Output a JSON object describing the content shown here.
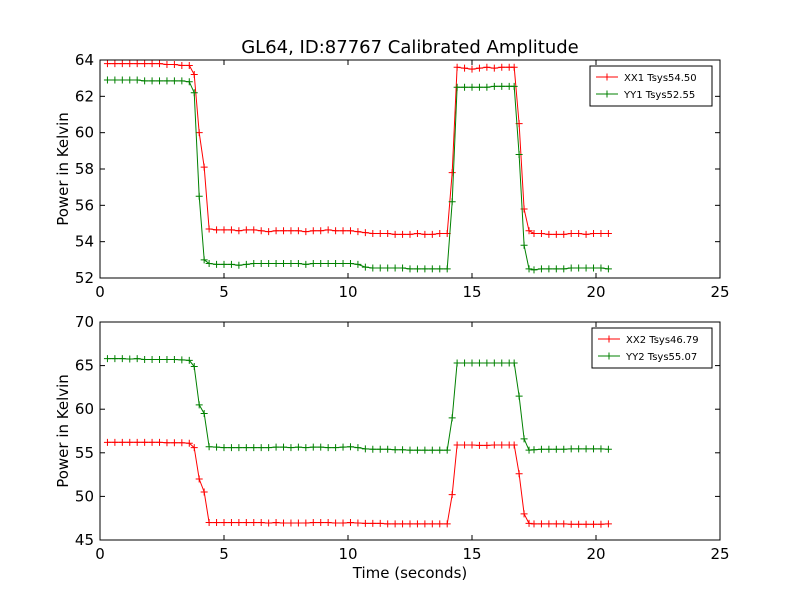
{
  "chart_data": [
    {
      "type": "line",
      "title": "GL64, ID:87767 Calibrated Amplitude",
      "xlabel": "",
      "ylabel": "Power in Kelvin",
      "xlim": [
        0,
        25
      ],
      "ylim": [
        52,
        64
      ],
      "xticks": [
        0,
        5,
        10,
        15,
        20,
        25
      ],
      "yticks": [
        52,
        54,
        56,
        58,
        60,
        62,
        64
      ],
      "legend_position": "top-right",
      "series": [
        {
          "name": "XX1 Tsys54.50",
          "color": "#ff0000",
          "marker": "plus",
          "x": [
            0.3,
            0.6,
            0.9,
            1.2,
            1.5,
            1.8,
            2.1,
            2.4,
            2.7,
            3.0,
            3.3,
            3.6,
            3.8,
            4.0,
            4.2,
            4.4,
            4.7,
            5.0,
            5.3,
            5.6,
            5.9,
            6.2,
            6.5,
            6.8,
            7.1,
            7.4,
            7.7,
            8.0,
            8.3,
            8.6,
            8.9,
            9.2,
            9.5,
            9.8,
            10.1,
            10.4,
            10.7,
            11.0,
            11.3,
            11.6,
            11.9,
            12.2,
            12.5,
            12.8,
            13.1,
            13.4,
            13.7,
            14.0,
            14.2,
            14.4,
            14.7,
            15.0,
            15.3,
            15.6,
            15.9,
            16.2,
            16.5,
            16.7,
            16.9,
            17.1,
            17.3,
            17.5,
            17.8,
            18.1,
            18.4,
            18.7,
            19.0,
            19.3,
            19.6,
            19.9,
            20.2,
            20.5
          ],
          "y": [
            63.8,
            63.8,
            63.8,
            63.8,
            63.8,
            63.8,
            63.8,
            63.8,
            63.75,
            63.75,
            63.7,
            63.7,
            63.2,
            60.0,
            58.1,
            54.7,
            54.65,
            54.65,
            54.65,
            54.6,
            54.65,
            54.65,
            54.6,
            54.55,
            54.6,
            54.6,
            54.6,
            54.6,
            54.55,
            54.6,
            54.6,
            54.65,
            54.6,
            54.6,
            54.6,
            54.55,
            54.5,
            54.45,
            54.45,
            54.45,
            54.4,
            54.4,
            54.4,
            54.45,
            54.4,
            54.4,
            54.45,
            54.45,
            57.8,
            63.6,
            63.55,
            63.5,
            63.55,
            63.6,
            63.55,
            63.6,
            63.6,
            63.6,
            60.5,
            55.8,
            54.6,
            54.45,
            54.45,
            54.4,
            54.4,
            54.4,
            54.45,
            54.45,
            54.4,
            54.45,
            54.45,
            54.45
          ]
        },
        {
          "name": "YY1 Tsys52.55",
          "color": "#008000",
          "marker": "plus",
          "x": [
            0.3,
            0.6,
            0.9,
            1.2,
            1.5,
            1.8,
            2.1,
            2.4,
            2.7,
            3.0,
            3.3,
            3.6,
            3.8,
            4.0,
            4.2,
            4.4,
            4.7,
            5.0,
            5.3,
            5.6,
            5.9,
            6.2,
            6.5,
            6.8,
            7.1,
            7.4,
            7.7,
            8.0,
            8.3,
            8.6,
            8.9,
            9.2,
            9.5,
            9.8,
            10.1,
            10.4,
            10.7,
            11.0,
            11.3,
            11.6,
            11.9,
            12.2,
            12.5,
            12.8,
            13.1,
            13.4,
            13.7,
            14.0,
            14.2,
            14.4,
            14.7,
            15.0,
            15.3,
            15.6,
            15.9,
            16.2,
            16.5,
            16.7,
            16.9,
            17.1,
            17.3,
            17.5,
            17.8,
            18.1,
            18.4,
            18.7,
            19.0,
            19.3,
            19.6,
            19.9,
            20.2,
            20.5
          ],
          "y": [
            62.9,
            62.9,
            62.9,
            62.9,
            62.9,
            62.85,
            62.85,
            62.85,
            62.85,
            62.85,
            62.85,
            62.8,
            62.2,
            56.5,
            53.0,
            52.8,
            52.75,
            52.75,
            52.75,
            52.7,
            52.75,
            52.8,
            52.8,
            52.8,
            52.8,
            52.8,
            52.8,
            52.8,
            52.75,
            52.8,
            52.8,
            52.8,
            52.8,
            52.8,
            52.8,
            52.75,
            52.6,
            52.55,
            52.55,
            52.55,
            52.55,
            52.55,
            52.5,
            52.5,
            52.5,
            52.5,
            52.5,
            52.5,
            56.2,
            62.5,
            62.5,
            62.5,
            62.5,
            62.5,
            62.55,
            62.55,
            62.55,
            62.55,
            58.8,
            53.8,
            52.5,
            52.45,
            52.5,
            52.5,
            52.5,
            52.5,
            52.55,
            52.55,
            52.55,
            52.55,
            52.55,
            52.5
          ]
        }
      ]
    },
    {
      "type": "line",
      "title": "",
      "xlabel": "Time (seconds)",
      "ylabel": "Power in Kelvin",
      "xlim": [
        0,
        25
      ],
      "ylim": [
        45,
        70
      ],
      "xticks": [
        0,
        5,
        10,
        15,
        20,
        25
      ],
      "yticks": [
        45,
        50,
        55,
        60,
        65,
        70
      ],
      "legend_position": "top-right",
      "series": [
        {
          "name": "XX2 Tsys46.79",
          "color": "#ff0000",
          "marker": "plus",
          "x": [
            0.3,
            0.6,
            0.9,
            1.2,
            1.5,
            1.8,
            2.1,
            2.4,
            2.7,
            3.0,
            3.3,
            3.6,
            3.8,
            4.0,
            4.2,
            4.4,
            4.7,
            5.0,
            5.3,
            5.6,
            5.9,
            6.2,
            6.5,
            6.8,
            7.1,
            7.4,
            7.7,
            8.0,
            8.3,
            8.6,
            8.9,
            9.2,
            9.5,
            9.8,
            10.1,
            10.4,
            10.7,
            11.0,
            11.3,
            11.6,
            11.9,
            12.2,
            12.5,
            12.8,
            13.1,
            13.4,
            13.7,
            14.0,
            14.2,
            14.4,
            14.7,
            15.0,
            15.3,
            15.6,
            15.9,
            16.2,
            16.5,
            16.7,
            16.9,
            17.1,
            17.3,
            17.5,
            17.8,
            18.1,
            18.4,
            18.7,
            19.0,
            19.3,
            19.6,
            19.9,
            20.2,
            20.5
          ],
          "y": [
            56.2,
            56.2,
            56.2,
            56.2,
            56.2,
            56.2,
            56.2,
            56.2,
            56.15,
            56.15,
            56.15,
            56.1,
            55.6,
            52.0,
            50.5,
            47.0,
            47.0,
            47.0,
            47.0,
            47.0,
            47.0,
            47.0,
            47.0,
            46.95,
            47.0,
            46.95,
            46.95,
            46.95,
            46.95,
            47.0,
            47.0,
            47.0,
            46.95,
            46.95,
            47.0,
            46.95,
            46.9,
            46.9,
            46.9,
            46.85,
            46.85,
            46.85,
            46.85,
            46.85,
            46.85,
            46.85,
            46.85,
            46.85,
            50.2,
            55.9,
            55.9,
            55.9,
            55.85,
            55.85,
            55.9,
            55.9,
            55.9,
            55.9,
            52.6,
            48.0,
            46.9,
            46.85,
            46.85,
            46.85,
            46.85,
            46.85,
            46.8,
            46.8,
            46.8,
            46.8,
            46.8,
            46.85
          ]
        },
        {
          "name": "YY2 Tsys55.07",
          "color": "#008000",
          "marker": "plus",
          "x": [
            0.3,
            0.6,
            0.9,
            1.2,
            1.5,
            1.8,
            2.1,
            2.4,
            2.7,
            3.0,
            3.3,
            3.6,
            3.8,
            4.0,
            4.2,
            4.4,
            4.7,
            5.0,
            5.3,
            5.6,
            5.9,
            6.2,
            6.5,
            6.8,
            7.1,
            7.4,
            7.7,
            8.0,
            8.3,
            8.6,
            8.9,
            9.2,
            9.5,
            9.8,
            10.1,
            10.4,
            10.7,
            11.0,
            11.3,
            11.6,
            11.9,
            12.2,
            12.5,
            12.8,
            13.1,
            13.4,
            13.7,
            14.0,
            14.2,
            14.4,
            14.7,
            15.0,
            15.3,
            15.6,
            15.9,
            16.2,
            16.5,
            16.7,
            16.9,
            17.1,
            17.3,
            17.5,
            17.8,
            18.1,
            18.4,
            18.7,
            19.0,
            19.3,
            19.6,
            19.9,
            20.2,
            20.5
          ],
          "y": [
            65.8,
            65.8,
            65.8,
            65.75,
            65.8,
            65.7,
            65.7,
            65.7,
            65.7,
            65.7,
            65.65,
            65.6,
            64.9,
            60.5,
            59.5,
            55.7,
            55.65,
            55.6,
            55.6,
            55.6,
            55.6,
            55.6,
            55.6,
            55.6,
            55.65,
            55.65,
            55.6,
            55.65,
            55.6,
            55.65,
            55.65,
            55.6,
            55.6,
            55.65,
            55.7,
            55.6,
            55.45,
            55.4,
            55.4,
            55.4,
            55.35,
            55.35,
            55.3,
            55.3,
            55.3,
            55.3,
            55.3,
            55.3,
            59.0,
            65.3,
            65.3,
            65.3,
            65.3,
            65.3,
            65.3,
            65.3,
            65.3,
            65.3,
            61.5,
            56.6,
            55.3,
            55.35,
            55.4,
            55.4,
            55.4,
            55.4,
            55.45,
            55.45,
            55.45,
            55.45,
            55.45,
            55.4
          ]
        }
      ]
    }
  ]
}
